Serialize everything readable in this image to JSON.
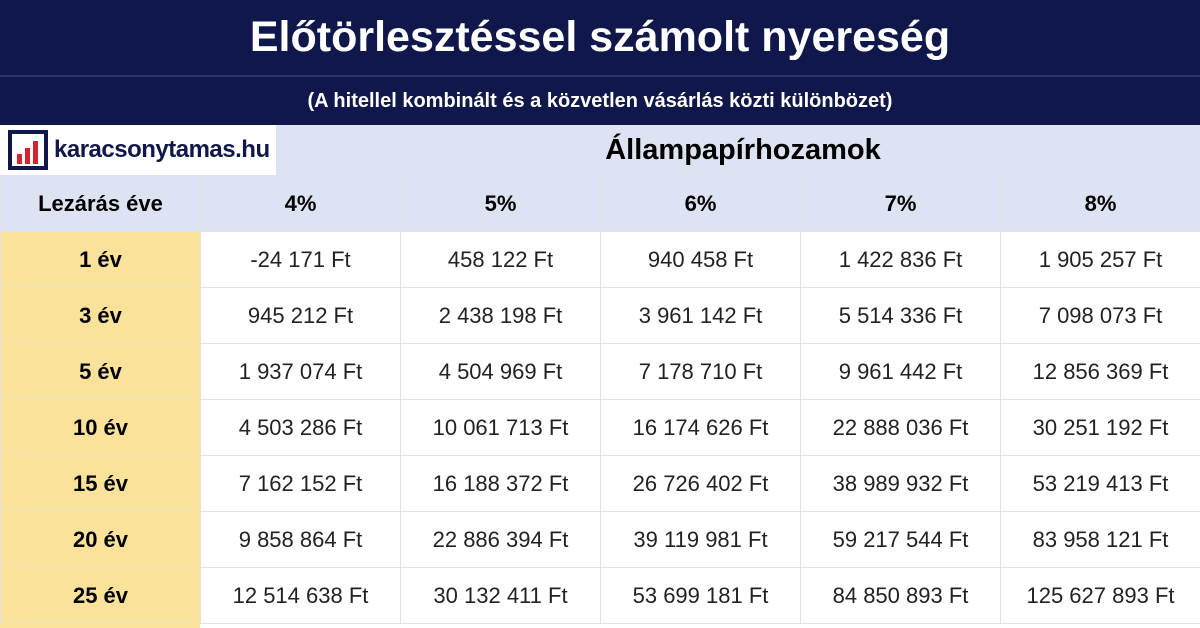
{
  "title": "Előtörlesztéssel számolt nyereség",
  "subtitle": "(A hitellel kombinált és a közvetlen vásárlás közti különbözet)",
  "logo": {
    "text": "karacsonytamas.hu"
  },
  "group_header": "Állampapírhozamok",
  "colors": {
    "title_bg": "#10184b",
    "header_bg": "#dde3f3",
    "row_label_bg": "#fbe29a",
    "logo_red": "#d8232a"
  },
  "chart_data": {
    "type": "table",
    "title": "Előtörlesztéssel számolt nyereség",
    "subtitle": "(A hitellel kombinált és a közvetlen vásárlás közti különbözet)",
    "column_group": "Állampapírhozamok",
    "row_header": "Lezárás éve",
    "columns": [
      "4%",
      "5%",
      "6%",
      "7%",
      "8%"
    ],
    "rows": [
      {
        "label": "1 év",
        "values": [
          "-24 171 Ft",
          "458 122 Ft",
          "940 458 Ft",
          "1 422 836 Ft",
          "1 905 257 Ft"
        ]
      },
      {
        "label": "3 év",
        "values": [
          "945 212 Ft",
          "2 438 198 Ft",
          "3 961 142 Ft",
          "5 514 336 Ft",
          "7 098 073 Ft"
        ]
      },
      {
        "label": "5 év",
        "values": [
          "1 937 074 Ft",
          "4 504 969 Ft",
          "7 178 710 Ft",
          "9 961 442 Ft",
          "12 856 369 Ft"
        ]
      },
      {
        "label": "10 év",
        "values": [
          "4 503 286 Ft",
          "10 061 713 Ft",
          "16 174 626 Ft",
          "22 888 036 Ft",
          "30 251 192 Ft"
        ]
      },
      {
        "label": "15 év",
        "values": [
          "7 162 152 Ft",
          "16 188 372 Ft",
          "26 726 402 Ft",
          "38 989 932 Ft",
          "53 219 413 Ft"
        ]
      },
      {
        "label": "20 év",
        "values": [
          "9 858 864 Ft",
          "22 886 394 Ft",
          "39 119 981 Ft",
          "59 217 544 Ft",
          "83 958 121 Ft"
        ]
      },
      {
        "label": "25 év",
        "values": [
          "12 514 638 Ft",
          "30 132 411 Ft",
          "53 699 181 Ft",
          "84 850 893 Ft",
          "125 627 893 Ft"
        ]
      }
    ]
  }
}
